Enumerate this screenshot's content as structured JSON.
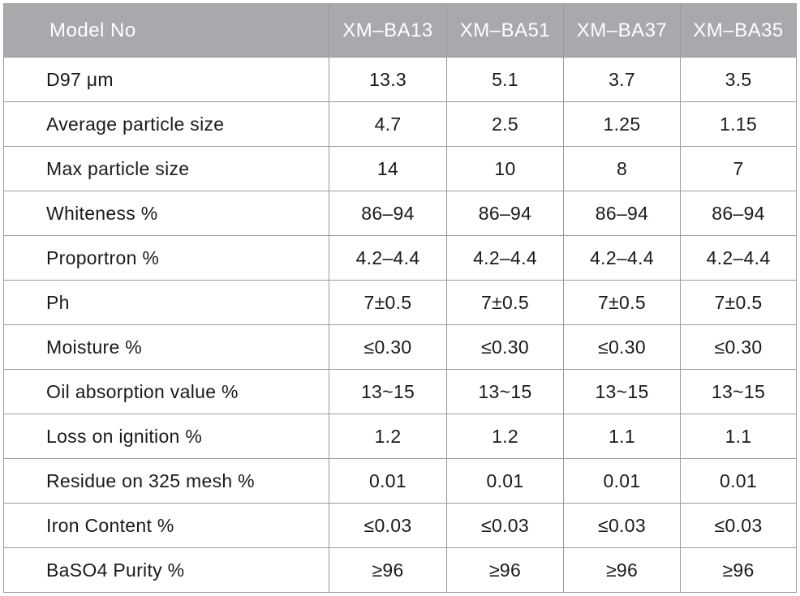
{
  "table": {
    "header_label": "Model No",
    "models": [
      "XM–BA13",
      "XM–BA51",
      "XM–BA37",
      "XM–BA35"
    ],
    "rows": [
      {
        "property": "D97  μm",
        "values": [
          "13.3",
          "5.1",
          "3.7",
          "3.5"
        ]
      },
      {
        "property": "Average particle size",
        "values": [
          "4.7",
          "2.5",
          "1.25",
          "1.15"
        ]
      },
      {
        "property": "Max particle size",
        "values": [
          "14",
          "10",
          "8",
          "7"
        ]
      },
      {
        "property": "Whiteness %",
        "values": [
          "86–94",
          "86–94",
          "86–94",
          "86–94"
        ]
      },
      {
        "property": "Proportron %",
        "values": [
          "4.2–4.4",
          "4.2–4.4",
          "4.2–4.4",
          "4.2–4.4"
        ]
      },
      {
        "property": "Ph",
        "values": [
          "7±0.5",
          "7±0.5",
          "7±0.5",
          "7±0.5"
        ]
      },
      {
        "property": "Moisture %",
        "values": [
          "≤0.30",
          "≤0.30",
          "≤0.30",
          "≤0.30"
        ]
      },
      {
        "property": "Oil absorption value %",
        "values": [
          "13~15",
          "13~15",
          "13~15",
          "13~15"
        ]
      },
      {
        "property": "Loss on ignition %",
        "values": [
          "1.2",
          "1.2",
          "1.1",
          "1.1"
        ]
      },
      {
        "property": "Residue on 325 mesh %",
        "values": [
          "0.01",
          "0.01",
          "0.01",
          "0.01"
        ]
      },
      {
        "property": "Iron Content %",
        "values": [
          "≤0.03",
          "≤0.03",
          "≤0.03",
          "≤0.03"
        ]
      },
      {
        "property": "BaSO4 Purity %",
        "values": [
          "≥96",
          "≥96",
          "≥96",
          "≥96"
        ]
      }
    ]
  },
  "colors": {
    "header_bg": "#a7a9ac",
    "header_text": "#ffffff",
    "border": "#9a9a9a",
    "text": "#1a1a1a"
  }
}
